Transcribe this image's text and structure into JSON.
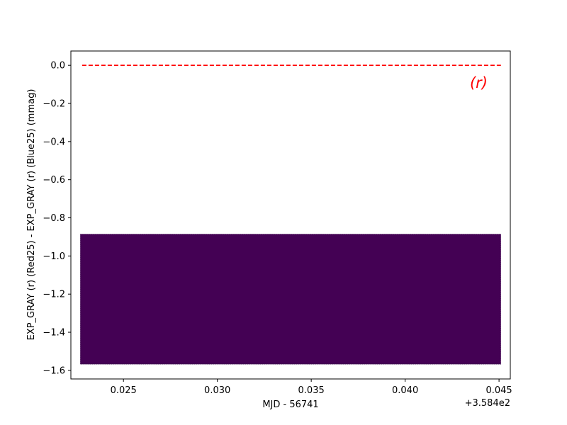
{
  "chart_data": {
    "type": "heatmap",
    "xlabel": "MJD - 56741",
    "ylabel": "EXP_GRAY (r) (Red25) - EXP_GRAY (r) (Blue25) (mmag)",
    "x_offset_label": "+3.584e2",
    "annotation": "(r)",
    "xlim": [
      0.0222,
      0.0456
    ],
    "ylim": [
      -1.645,
      0.075
    ],
    "x_ticks": [
      0.025,
      0.03,
      0.035,
      0.04,
      0.045
    ],
    "x_tick_labels": [
      "0.025",
      "0.030",
      "0.035",
      "0.040",
      "0.045"
    ],
    "y_ticks": [
      0.0,
      -0.2,
      -0.4,
      -0.6,
      -0.8,
      -1.0,
      -1.2,
      -1.4,
      -1.6
    ],
    "y_tick_labels": [
      "0.0",
      "−0.2",
      "−0.4",
      "−0.6",
      "−0.8",
      "−1.0",
      "−1.2",
      "−1.4",
      "−1.6"
    ],
    "reference_line": {
      "y": 0.0,
      "x_start": 0.0228,
      "x_end": 0.0451,
      "color": "#ff0000",
      "style": "dashed"
    },
    "density_region": {
      "x_start": 0.0227,
      "x_end": 0.0451,
      "y_start": -1.568,
      "y_end": -0.885,
      "color": "#440154"
    },
    "grid": false,
    "legend": "none"
  }
}
